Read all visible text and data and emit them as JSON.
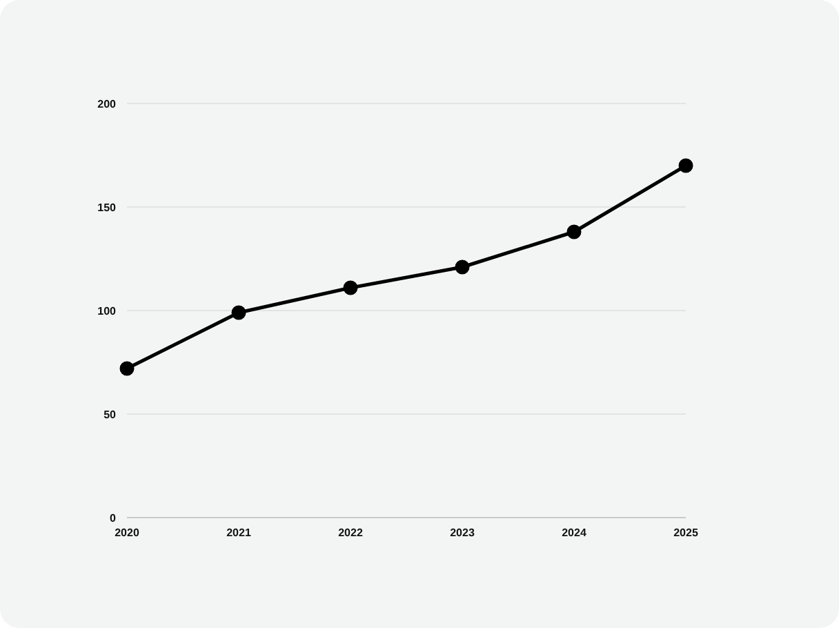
{
  "chart_data": {
    "type": "line",
    "categories": [
      "2020",
      "2021",
      "2022",
      "2023",
      "2024",
      "2025"
    ],
    "values": [
      72,
      99,
      111,
      121,
      138,
      170
    ],
    "color": "#000000",
    "ylim": [
      0,
      200
    ],
    "yticks": [
      0,
      50,
      100,
      150,
      200
    ],
    "grid": "y",
    "marker": "circle",
    "line_style": "solid"
  }
}
